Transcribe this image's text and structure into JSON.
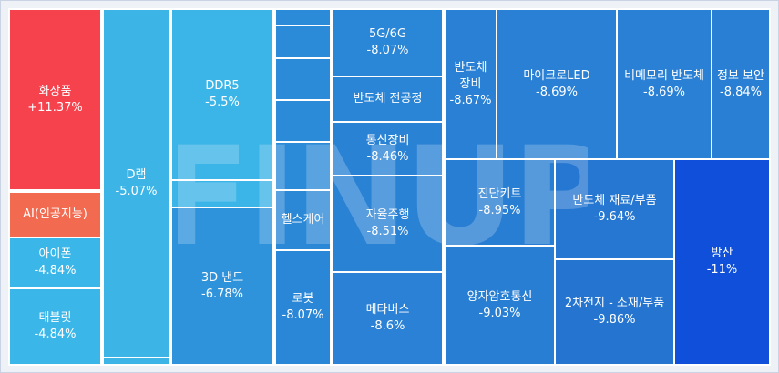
{
  "chart_data": {
    "type": "treemap",
    "watermark": "FINUP",
    "tiles": [
      {
        "name": "화장품",
        "change": "+11.37%",
        "value": 11.37,
        "color": "#f5424d"
      },
      {
        "name": "AI(인공지능)",
        "change": "",
        "value": null,
        "color": "#f26a4f"
      },
      {
        "name": "아이폰",
        "change": "-4.84%",
        "value": -4.84,
        "color": "#3ab6e8"
      },
      {
        "name": "태블릿",
        "change": "-4.84%",
        "value": -4.84,
        "color": "#3ab6e8"
      },
      {
        "name": "D램",
        "change": "-5.07%",
        "value": -5.07,
        "color": "#3cb4e6"
      },
      {
        "name": "",
        "change": "",
        "value": null,
        "color": "#3cb4e6"
      },
      {
        "name": "DDR5",
        "change": "-5.5%",
        "value": -5.5,
        "color": "#3bb4e7"
      },
      {
        "name": "",
        "change": "",
        "value": null,
        "color": "#3bb4e7"
      },
      {
        "name": "3D 낸드",
        "change": "-6.78%",
        "value": -6.78,
        "color": "#2f93dc"
      },
      {
        "name": "",
        "change": "",
        "value": null,
        "color": "#2b8bd8"
      },
      {
        "name": "",
        "change": "",
        "value": null,
        "color": "#2b8bd8"
      },
      {
        "name": "",
        "change": "",
        "value": null,
        "color": "#2b8bd8"
      },
      {
        "name": "",
        "change": "",
        "value": null,
        "color": "#2b8bd8"
      },
      {
        "name": "",
        "change": "",
        "value": null,
        "color": "#2b8bd8"
      },
      {
        "name": "헬스케어",
        "change": "",
        "value": null,
        "color": "#2b88d7"
      },
      {
        "name": "로봇",
        "change": "-8.07%",
        "value": -8.07,
        "color": "#2a86d6"
      },
      {
        "name": "5G/6G",
        "change": "-8.07%",
        "value": -8.07,
        "color": "#2a86d6"
      },
      {
        "name": "반도체 전공정",
        "change": "",
        "value": null,
        "color": "#2a85d6"
      },
      {
        "name": "통신장비",
        "change": "-8.46%",
        "value": -8.46,
        "color": "#2a82d5"
      },
      {
        "name": "자율주행",
        "change": "-8.51%",
        "value": -8.51,
        "color": "#2a82d5"
      },
      {
        "name": "메타버스",
        "change": "-8.6%",
        "value": -8.6,
        "color": "#2a81d5"
      },
      {
        "name": "반도체 장비",
        "change": "-8.67%",
        "value": -8.67,
        "color": "#2980d4"
      },
      {
        "name": "마이크로LED",
        "change": "-8.69%",
        "value": -8.69,
        "color": "#2980d4"
      },
      {
        "name": "비메모리 반도체",
        "change": "-8.69%",
        "value": -8.69,
        "color": "#2980d4"
      },
      {
        "name": "정보 보안",
        "change": "-8.84%",
        "value": -8.84,
        "color": "#297fd4"
      },
      {
        "name": "진단키트",
        "change": "-8.95%",
        "value": -8.95,
        "color": "#287ed3"
      },
      {
        "name": "양자암호통신",
        "change": "-9.03%",
        "value": -9.03,
        "color": "#287ed3"
      },
      {
        "name": "반도체 재료/부품",
        "change": "-9.64%",
        "value": -9.64,
        "color": "#2677d1"
      },
      {
        "name": "2차전지 - 소재/부품",
        "change": "-9.86%",
        "value": -9.86,
        "color": "#2575d0"
      },
      {
        "name": "방산",
        "change": "-11%",
        "value": -11,
        "color": "#0f4fd9"
      }
    ]
  }
}
